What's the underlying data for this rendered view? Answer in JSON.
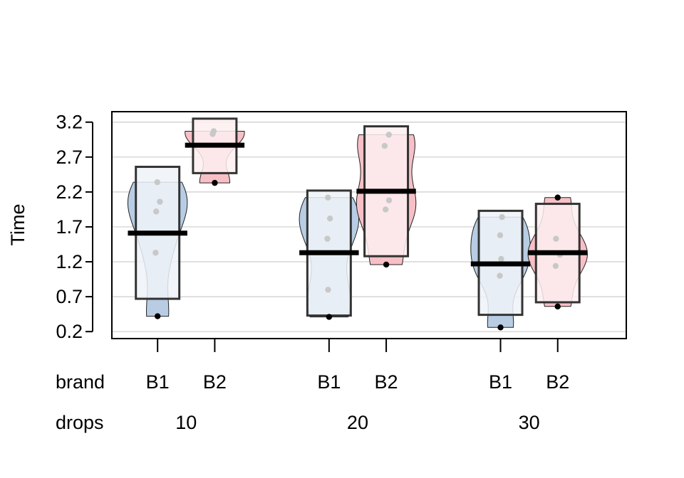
{
  "chart_data": {
    "type": "pirate",
    "ylabel": "Time",
    "yticks": [
      0.2,
      0.7,
      1.2,
      1.7,
      2.2,
      2.7,
      3.2
    ],
    "ylim": [
      0.1,
      3.35
    ],
    "grid": true,
    "factor_labels": {
      "inner": "brand",
      "outer": "drops"
    },
    "outer_groups": [
      "10",
      "20",
      "30"
    ],
    "inner_levels": [
      "B1",
      "B2"
    ],
    "colors": {
      "B1": {
        "bean": "#b8cde4",
        "box": "#eef3f8"
      },
      "B2": {
        "bean": "#f7c0c6",
        "box": "#fdeff0"
      },
      "points": "#c8c8c8",
      "extreme_point": "#000000",
      "mean_line": "#000000",
      "box_border": "#333333",
      "grid": "#cccccc"
    },
    "groups": [
      {
        "drops": "10",
        "brand": "B1",
        "mean": 1.61,
        "inf_low": 0.67,
        "inf_high": 2.56,
        "min": 0.42,
        "max": 2.34,
        "points": [
          2.34,
          2.06,
          1.92,
          1.33,
          0.42
        ]
      },
      {
        "drops": "10",
        "brand": "B2",
        "mean": 2.87,
        "inf_low": 2.47,
        "inf_high": 3.25,
        "min": 2.33,
        "max": 3.07,
        "points": [
          3.07,
          3.03,
          2.33
        ]
      },
      {
        "drops": "20",
        "brand": "B1",
        "mean": 1.33,
        "inf_low": 0.43,
        "inf_high": 2.22,
        "min": 0.41,
        "max": 2.12,
        "points": [
          2.12,
          1.82,
          1.53,
          0.8,
          0.41
        ]
      },
      {
        "drops": "20",
        "brand": "B2",
        "mean": 2.21,
        "inf_low": 1.28,
        "inf_high": 3.14,
        "min": 1.16,
        "max": 3.02,
        "points": [
          3.02,
          2.86,
          2.08,
          1.95,
          1.16
        ]
      },
      {
        "drops": "30",
        "brand": "B1",
        "mean": 1.17,
        "inf_low": 0.44,
        "inf_high": 1.93,
        "min": 0.26,
        "max": 1.84,
        "points": [
          1.84,
          1.58,
          1.24,
          1.0,
          0.26
        ]
      },
      {
        "drops": "30",
        "brand": "B2",
        "mean": 1.33,
        "inf_low": 0.62,
        "inf_high": 2.03,
        "min": 0.56,
        "max": 2.12,
        "points": [
          2.12,
          1.53,
          1.3,
          1.14,
          0.56
        ]
      }
    ]
  }
}
